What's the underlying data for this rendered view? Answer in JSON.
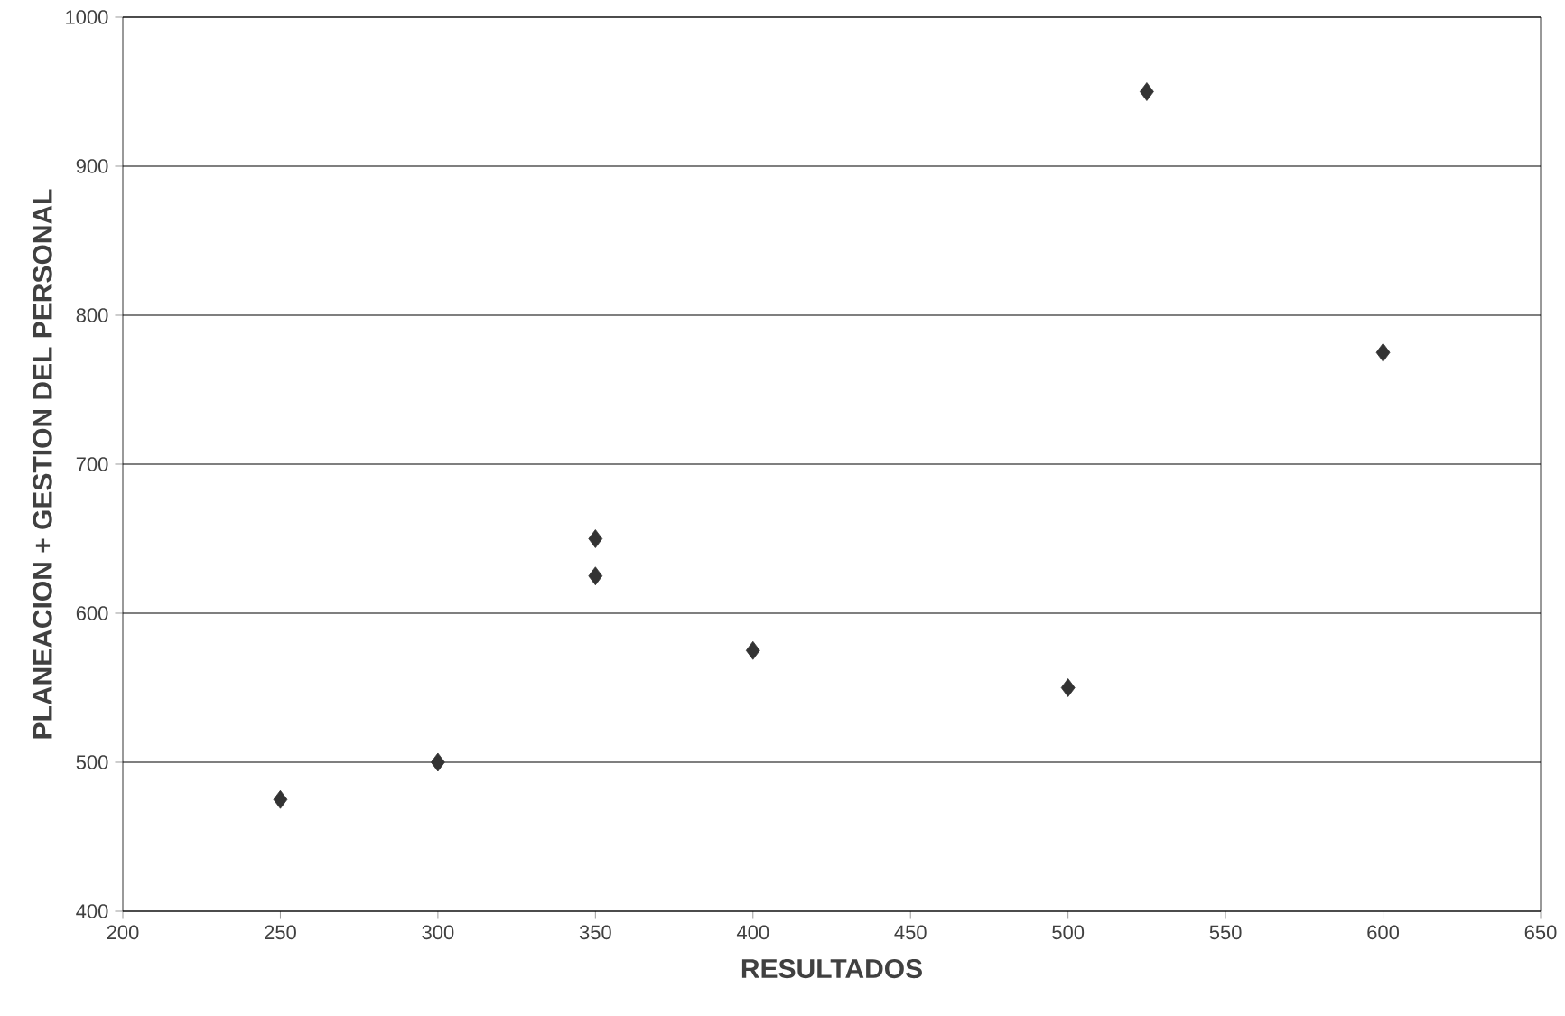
{
  "chart_data": {
    "type": "scatter",
    "xlabel": "RESULTADOS",
    "ylabel": "PLANEACION + GESTION DEL PERSONAL",
    "x": [
      250,
      300,
      350,
      350,
      400,
      500,
      525,
      600
    ],
    "values": [
      475,
      500,
      650,
      625,
      575,
      550,
      950,
      775
    ],
    "color": "#333333",
    "marker": "diamond",
    "grid": "y",
    "xlim": [
      200,
      650
    ],
    "ylim": [
      400,
      1000
    ],
    "xticks": [
      200,
      250,
      300,
      350,
      400,
      450,
      500,
      550,
      600,
      650
    ],
    "yticks": [
      400,
      500,
      600,
      700,
      800,
      900,
      1000
    ]
  }
}
